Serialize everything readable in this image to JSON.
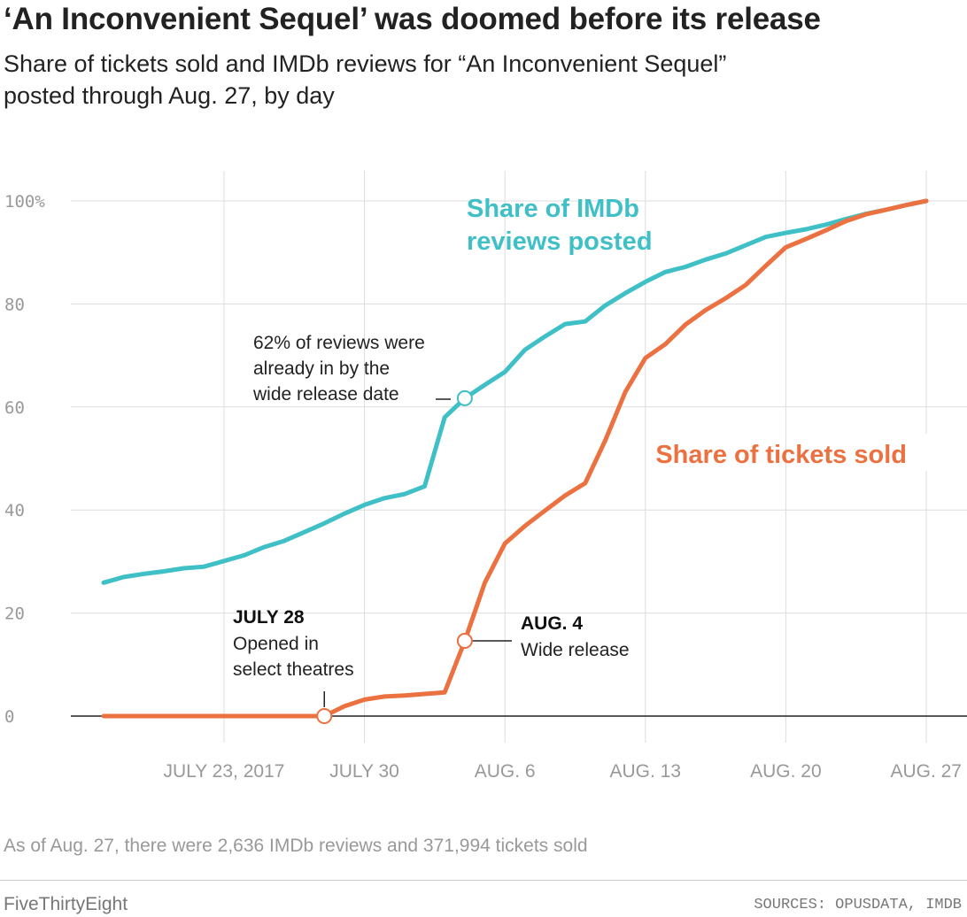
{
  "header": {
    "title": "‘An Inconvenient Sequel’ was doomed before its release",
    "subtitle": "Share of tickets sold and IMDb reviews for “An Inconvenient Sequel” posted through Aug. 27, by day"
  },
  "footer": {
    "note": "As of Aug. 27, there were 2,636 IMDb reviews and 371,994 tickets sold",
    "brand": "FiveThirtyEight",
    "sources": "SOURCES: OPUSDATA, IMDB"
  },
  "colors": {
    "reviews": "#3fbfc6",
    "tickets": "#ec7140",
    "grid": "#dddddd",
    "baseline": "#222222"
  },
  "chart_data": {
    "type": "line",
    "xlabel": "",
    "ylabel": "",
    "ylim": [
      0,
      100
    ],
    "xlim": [
      "2017-07-17",
      "2017-08-27"
    ],
    "grid": true,
    "legend": "direct labels",
    "y_ticks": [
      {
        "value": 100,
        "label": "100%"
      },
      {
        "value": 80,
        "label": "80"
      },
      {
        "value": 60,
        "label": "60"
      },
      {
        "value": 40,
        "label": "40"
      },
      {
        "value": 20,
        "label": "20"
      },
      {
        "value": 0,
        "label": "0"
      }
    ],
    "x_ticks": [
      {
        "date": "2017-07-23",
        "label": "JULY 23, 2017"
      },
      {
        "date": "2017-07-30",
        "label": "JULY 30"
      },
      {
        "date": "2017-08-06",
        "label": "AUG. 6"
      },
      {
        "date": "2017-08-13",
        "label": "AUG. 13"
      },
      {
        "date": "2017-08-20",
        "label": "AUG. 20"
      },
      {
        "date": "2017-08-27",
        "label": "AUG. 27"
      }
    ],
    "series": [
      {
        "name": "Share of IMDb reviews posted",
        "color": "#3fbfc6",
        "points": [
          {
            "x": "2017-07-17",
            "y": 25.9
          },
          {
            "x": "2017-07-18",
            "y": 27.0
          },
          {
            "x": "2017-07-19",
            "y": 27.6
          },
          {
            "x": "2017-07-20",
            "y": 28.1
          },
          {
            "x": "2017-07-21",
            "y": 28.7
          },
          {
            "x": "2017-07-22",
            "y": 29.0
          },
          {
            "x": "2017-07-23",
            "y": 30.1
          },
          {
            "x": "2017-07-24",
            "y": 31.2
          },
          {
            "x": "2017-07-25",
            "y": 32.8
          },
          {
            "x": "2017-07-26",
            "y": 34.0
          },
          {
            "x": "2017-07-27",
            "y": 35.7
          },
          {
            "x": "2017-07-28",
            "y": 37.4
          },
          {
            "x": "2017-07-29",
            "y": 39.3
          },
          {
            "x": "2017-07-30",
            "y": 41.0
          },
          {
            "x": "2017-07-31",
            "y": 42.3
          },
          {
            "x": "2017-08-01",
            "y": 43.1
          },
          {
            "x": "2017-08-02",
            "y": 44.6
          },
          {
            "x": "2017-08-03",
            "y": 58.0
          },
          {
            "x": "2017-08-04",
            "y": 61.7
          },
          {
            "x": "2017-08-05",
            "y": 64.3
          },
          {
            "x": "2017-08-06",
            "y": 66.8
          },
          {
            "x": "2017-08-07",
            "y": 71.1
          },
          {
            "x": "2017-08-08",
            "y": 73.7
          },
          {
            "x": "2017-08-09",
            "y": 76.1
          },
          {
            "x": "2017-08-10",
            "y": 76.6
          },
          {
            "x": "2017-08-11",
            "y": 79.7
          },
          {
            "x": "2017-08-12",
            "y": 82.1
          },
          {
            "x": "2017-08-13",
            "y": 84.3
          },
          {
            "x": "2017-08-14",
            "y": 86.2
          },
          {
            "x": "2017-08-15",
            "y": 87.2
          },
          {
            "x": "2017-08-16",
            "y": 88.6
          },
          {
            "x": "2017-08-17",
            "y": 89.8
          },
          {
            "x": "2017-08-18",
            "y": 91.4
          },
          {
            "x": "2017-08-19",
            "y": 93.0
          },
          {
            "x": "2017-08-20",
            "y": 93.8
          },
          {
            "x": "2017-08-21",
            "y": 94.5
          },
          {
            "x": "2017-08-22",
            "y": 95.4
          },
          {
            "x": "2017-08-23",
            "y": 96.5
          },
          {
            "x": "2017-08-24",
            "y": 97.5
          },
          {
            "x": "2017-08-25",
            "y": 98.3
          },
          {
            "x": "2017-08-26",
            "y": 99.2
          },
          {
            "x": "2017-08-27",
            "y": 100.0
          }
        ]
      },
      {
        "name": "Share of tickets sold",
        "color": "#ec7140",
        "points": [
          {
            "x": "2017-07-17",
            "y": 0
          },
          {
            "x": "2017-07-18",
            "y": 0
          },
          {
            "x": "2017-07-19",
            "y": 0
          },
          {
            "x": "2017-07-20",
            "y": 0
          },
          {
            "x": "2017-07-21",
            "y": 0
          },
          {
            "x": "2017-07-22",
            "y": 0
          },
          {
            "x": "2017-07-23",
            "y": 0
          },
          {
            "x": "2017-07-24",
            "y": 0
          },
          {
            "x": "2017-07-25",
            "y": 0
          },
          {
            "x": "2017-07-26",
            "y": 0
          },
          {
            "x": "2017-07-27",
            "y": 0
          },
          {
            "x": "2017-07-28",
            "y": 0
          },
          {
            "x": "2017-07-29",
            "y": 1.9
          },
          {
            "x": "2017-07-30",
            "y": 3.2
          },
          {
            "x": "2017-07-31",
            "y": 3.8
          },
          {
            "x": "2017-08-01",
            "y": 4.0
          },
          {
            "x": "2017-08-02",
            "y": 4.3
          },
          {
            "x": "2017-08-03",
            "y": 4.6
          },
          {
            "x": "2017-08-04",
            "y": 14.6
          },
          {
            "x": "2017-08-05",
            "y": 25.9
          },
          {
            "x": "2017-08-06",
            "y": 33.5
          },
          {
            "x": "2017-08-07",
            "y": 36.9
          },
          {
            "x": "2017-08-08",
            "y": 39.9
          },
          {
            "x": "2017-08-09",
            "y": 42.8
          },
          {
            "x": "2017-08-10",
            "y": 45.2
          },
          {
            "x": "2017-08-11",
            "y": 53.5
          },
          {
            "x": "2017-08-12",
            "y": 62.9
          },
          {
            "x": "2017-08-13",
            "y": 69.5
          },
          {
            "x": "2017-08-14",
            "y": 72.2
          },
          {
            "x": "2017-08-15",
            "y": 76.0
          },
          {
            "x": "2017-08-16",
            "y": 78.8
          },
          {
            "x": "2017-08-17",
            "y": 81.1
          },
          {
            "x": "2017-08-18",
            "y": 83.7
          },
          {
            "x": "2017-08-19",
            "y": 87.4
          },
          {
            "x": "2017-08-20",
            "y": 91.0
          },
          {
            "x": "2017-08-21",
            "y": 92.6
          },
          {
            "x": "2017-08-22",
            "y": 94.3
          },
          {
            "x": "2017-08-23",
            "y": 96.1
          },
          {
            "x": "2017-08-24",
            "y": 97.4
          },
          {
            "x": "2017-08-25",
            "y": 98.3
          },
          {
            "x": "2017-08-26",
            "y": 99.2
          },
          {
            "x": "2017-08-27",
            "y": 100.0
          }
        ]
      }
    ],
    "series_labels": {
      "reviews": [
        "Share of IMDb",
        "reviews posted"
      ],
      "tickets": [
        "Share of tickets sold"
      ]
    },
    "annotations": [
      {
        "id": "reviews-wide-release",
        "series": 0,
        "x": "2017-08-04",
        "y": 61.7,
        "lines": [
          "62% of reviews were",
          "already in by the",
          "wide release date"
        ]
      },
      {
        "id": "july-28",
        "series": 1,
        "x": "2017-07-28",
        "y": 0,
        "heading": "JULY 28",
        "lines": [
          "Opened in",
          "select theatres"
        ]
      },
      {
        "id": "aug-4",
        "series": 1,
        "x": "2017-08-04",
        "y": 14.6,
        "heading": "AUG. 4",
        "lines": [
          "Wide release"
        ]
      }
    ]
  }
}
